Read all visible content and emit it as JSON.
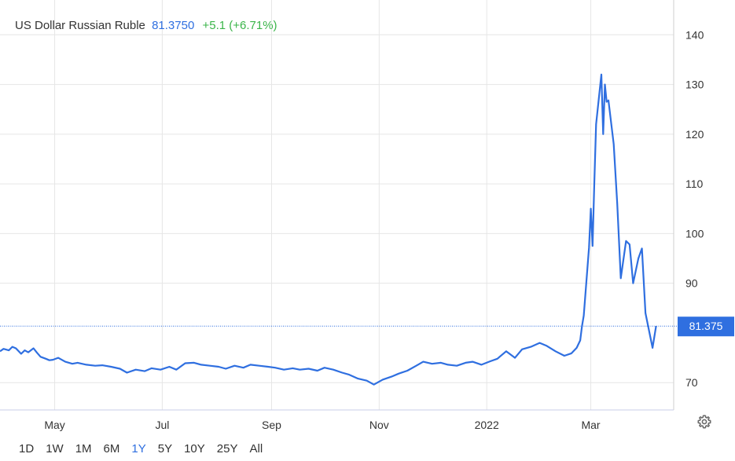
{
  "header": {
    "name": "US Dollar Russian Ruble",
    "price": "81.3750",
    "change": "+5.1 (+6.71%)"
  },
  "colors": {
    "line": "#2f6fe0",
    "positive": "#3bb54a",
    "grid": "#e6e6e6",
    "text": "#333333"
  },
  "range_buttons": [
    "1D",
    "1W",
    "1M",
    "6M",
    "1Y",
    "5Y",
    "10Y",
    "25Y",
    "All"
  ],
  "active_range": "1Y",
  "settings_icon": "gear-icon",
  "chart_data": {
    "type": "line",
    "xlabel": "",
    "ylabel": "",
    "ylim": [
      64.5,
      147
    ],
    "xlim": [
      "2021-03-31",
      "2022-04-17"
    ],
    "yticks": [
      70,
      90,
      100,
      110,
      120,
      130,
      140
    ],
    "xticks": [
      {
        "date": "2021-05-01",
        "label": "May"
      },
      {
        "date": "2021-07-01",
        "label": "Jul"
      },
      {
        "date": "2021-09-01",
        "label": "Sep"
      },
      {
        "date": "2021-11-01",
        "label": "Nov"
      },
      {
        "date": "2022-01-01",
        "label": "2022"
      },
      {
        "date": "2022-03-01",
        "label": "Mar"
      }
    ],
    "grid": true,
    "last_value_label": "81.375",
    "last_value": 81.375,
    "series": [
      {
        "x": [
          "2021-03-31",
          "2021-04-02",
          "2021-04-05",
          "2021-04-07",
          "2021-04-09",
          "2021-04-12",
          "2021-04-14",
          "2021-04-16",
          "2021-04-19",
          "2021-04-21",
          "2021-04-23",
          "2021-04-26",
          "2021-04-28",
          "2021-04-30",
          "2021-05-03",
          "2021-05-05",
          "2021-05-07",
          "2021-05-11",
          "2021-05-14",
          "2021-05-19",
          "2021-05-24",
          "2021-05-28",
          "2021-06-02",
          "2021-06-07",
          "2021-06-11",
          "2021-06-16",
          "2021-06-21",
          "2021-06-25",
          "2021-06-30",
          "2021-07-05",
          "2021-07-09",
          "2021-07-14",
          "2021-07-19",
          "2021-07-23",
          "2021-07-28",
          "2021-08-02",
          "2021-08-06",
          "2021-08-11",
          "2021-08-16",
          "2021-08-20",
          "2021-08-25",
          "2021-08-30",
          "2021-09-03",
          "2021-09-08",
          "2021-09-13",
          "2021-09-17",
          "2021-09-22",
          "2021-09-27",
          "2021-10-01",
          "2021-10-06",
          "2021-10-11",
          "2021-10-15",
          "2021-10-20",
          "2021-10-25",
          "2021-10-29",
          "2021-11-03",
          "2021-11-08",
          "2021-11-12",
          "2021-11-17",
          "2021-11-22",
          "2021-11-26",
          "2021-12-01",
          "2021-12-06",
          "2021-12-10",
          "2021-12-15",
          "2021-12-20",
          "2021-12-24",
          "2021-12-29",
          "2022-01-03",
          "2022-01-07",
          "2022-01-12",
          "2022-01-17",
          "2022-01-21",
          "2022-01-26",
          "2022-01-31",
          "2022-02-04",
          "2022-02-09",
          "2022-02-14",
          "2022-02-18",
          "2022-02-21",
          "2022-02-23",
          "2022-02-24",
          "2022-02-25",
          "2022-02-28",
          "2022-03-01",
          "2022-03-02",
          "2022-03-03",
          "2022-03-04",
          "2022-03-07",
          "2022-03-08",
          "2022-03-09",
          "2022-03-10",
          "2022-03-11",
          "2022-03-14",
          "2022-03-16",
          "2022-03-18",
          "2022-03-21",
          "2022-03-23",
          "2022-03-25",
          "2022-03-28",
          "2022-03-30",
          "2022-04-01",
          "2022-04-05",
          "2022-04-07"
        ],
        "y": [
          76.3,
          76.8,
          76.5,
          77.2,
          76.9,
          75.8,
          76.5,
          76.1,
          76.9,
          76.0,
          75.2,
          74.8,
          74.5,
          74.6,
          75.0,
          74.6,
          74.2,
          73.8,
          74.0,
          73.6,
          73.4,
          73.5,
          73.2,
          72.8,
          72.0,
          72.6,
          72.3,
          72.9,
          72.6,
          73.2,
          72.6,
          73.9,
          74.0,
          73.6,
          73.4,
          73.2,
          72.8,
          73.4,
          73.0,
          73.6,
          73.4,
          73.2,
          73.0,
          72.6,
          72.9,
          72.6,
          72.8,
          72.4,
          73.0,
          72.6,
          72.0,
          71.6,
          70.8,
          70.4,
          69.6,
          70.6,
          71.2,
          71.8,
          72.4,
          73.4,
          74.2,
          73.8,
          74.0,
          73.6,
          73.4,
          74.0,
          74.2,
          73.6,
          74.3,
          74.8,
          76.3,
          75.0,
          76.7,
          77.2,
          78.0,
          77.4,
          76.3,
          75.4,
          75.9,
          77.0,
          78.5,
          81.3,
          83.5,
          97.2,
          105.0,
          97.5,
          110.0,
          122.0,
          132.0,
          120.0,
          130.0,
          126.5,
          126.8,
          118.0,
          106.0,
          91.0,
          98.5,
          97.8,
          90.0,
          95.0,
          97.0,
          84.0,
          77.0,
          81.375
        ]
      }
    ]
  }
}
